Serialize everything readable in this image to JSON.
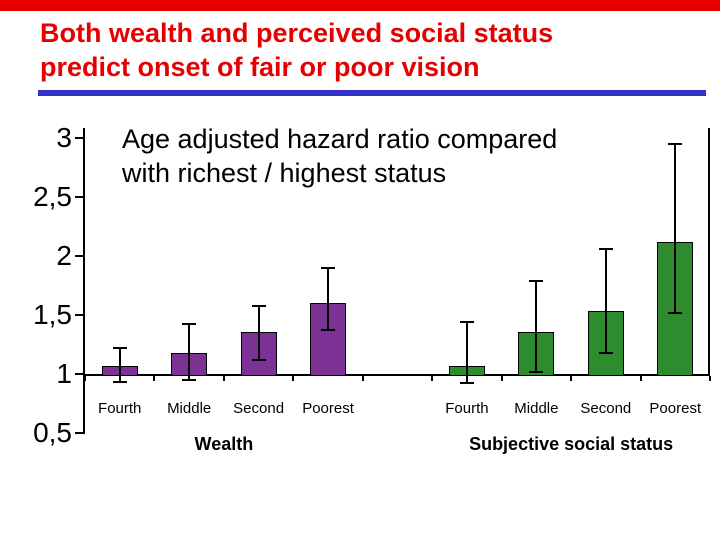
{
  "slide": {
    "title_line1": "Both wealth and perceived social status",
    "title_line2": "predict onset of fair or poor vision"
  },
  "colors": {
    "title_red": "#e60000",
    "top_bar_red": "#e60000",
    "underline_blue": "#3333cc",
    "wealth_purple": "#7b3294",
    "status_green": "#2e8b2e",
    "axis_black": "#000000"
  },
  "chart_data": {
    "type": "bar",
    "title": "Age adjusted hazard ratio compared with richest / highest status",
    "annotation_line1": "Age adjusted hazard ratio compared",
    "annotation_line2": "with richest / highest status",
    "xlabel": "",
    "ylabel": "",
    "ylim": [
      0.5,
      3
    ],
    "baseline": 1,
    "grid": false,
    "legend": "none",
    "ytick_labels": [
      "3",
      "2,5",
      "2",
      "1,5",
      "1",
      "0,5"
    ],
    "ytick_values": [
      3,
      2.5,
      2,
      1.5,
      1,
      0.5
    ],
    "error_bars": true,
    "groups": [
      {
        "label": "Wealth",
        "color_key": "wealth_purple",
        "categories": [
          "Fourth",
          "Middle",
          "Second",
          "Poorest"
        ],
        "values": [
          1.07,
          1.18,
          1.36,
          1.6
        ],
        "ci_low": [
          0.93,
          0.95,
          1.12,
          1.37
        ],
        "ci_high": [
          1.22,
          1.42,
          1.58,
          1.9
        ]
      },
      {
        "label": "Subjective social status",
        "color_key": "status_green",
        "categories": [
          "Fourth",
          "Middle",
          "Second",
          "Poorest"
        ],
        "values": [
          1.07,
          1.36,
          1.53,
          2.12
        ],
        "ci_low": [
          0.92,
          1.02,
          1.18,
          1.52
        ],
        "ci_high": [
          1.44,
          1.79,
          2.06,
          2.95
        ]
      }
    ]
  }
}
